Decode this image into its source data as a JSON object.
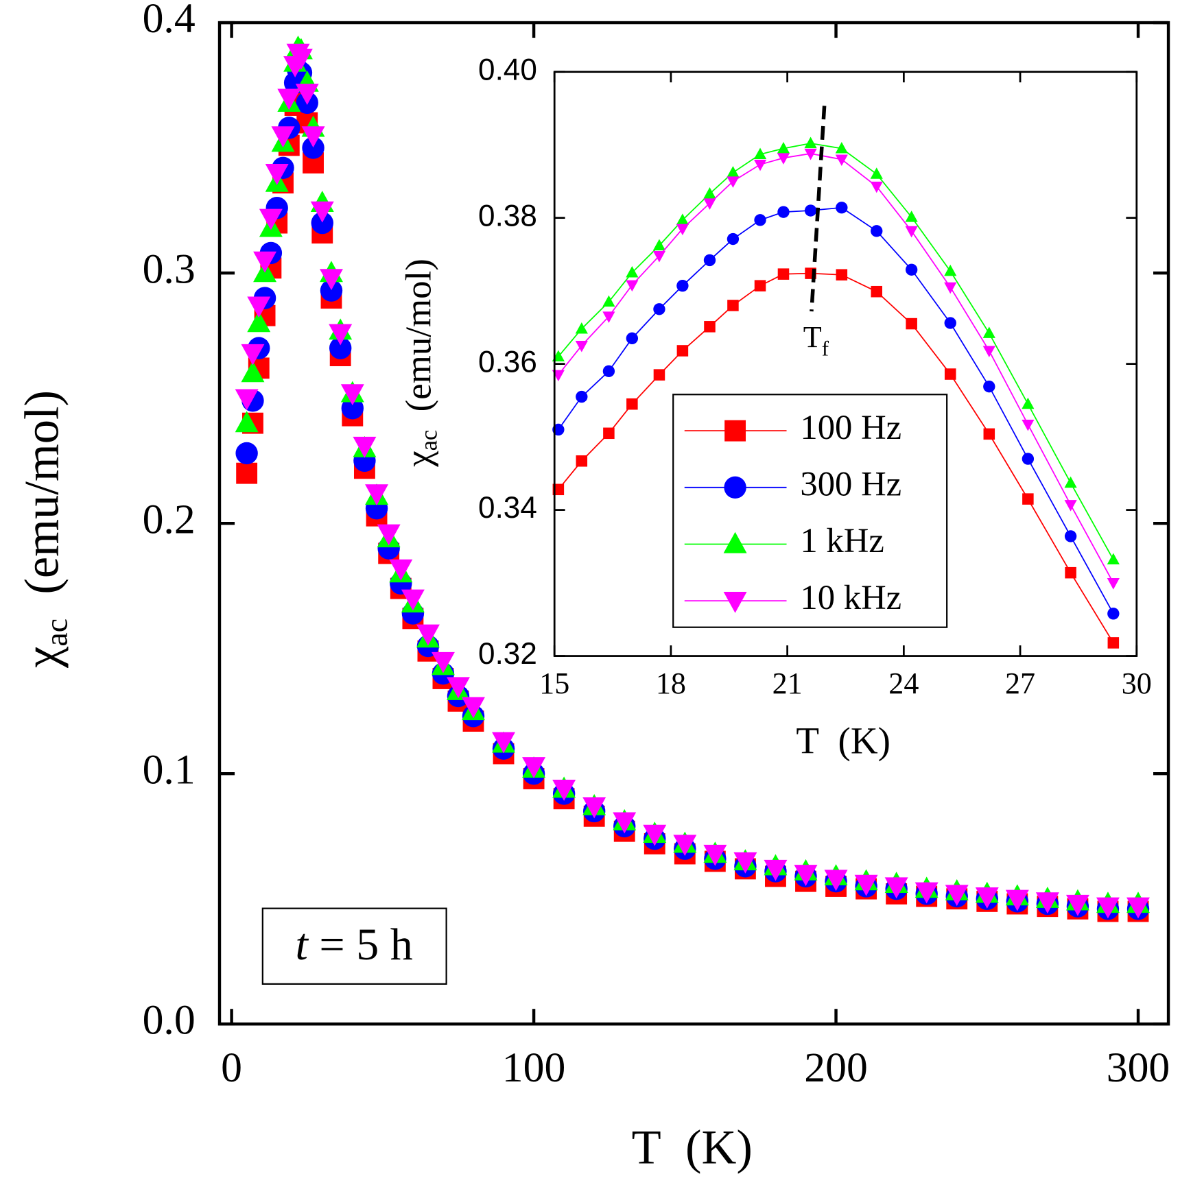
{
  "chart_data": [
    {
      "type": "scatter",
      "xlabel": {
        "symbol": "T",
        "unit": "(K)"
      },
      "ylabel": {
        "symbol": "χ",
        "sub": "ac",
        "unit": "(emu/mol)"
      },
      "annotation": {
        "var": "t",
        "text": "= 5 h"
      },
      "xlim": [
        -4,
        310
      ],
      "xticks": [
        0,
        100,
        200,
        300
      ],
      "ylim": [
        0,
        0.4
      ],
      "yticks": [
        {
          "value": 0,
          "label": "0.0"
        },
        0.1,
        0.2,
        0.3,
        0.4
      ],
      "x": [
        5,
        7,
        9,
        11,
        13,
        15,
        17,
        19,
        21,
        22,
        23,
        25,
        27,
        30,
        33,
        36,
        40,
        44,
        48,
        52,
        56,
        60,
        65,
        70,
        75,
        80,
        90,
        100,
        110,
        120,
        130,
        140,
        150,
        160,
        170,
        180,
        190,
        200,
        210,
        220,
        230,
        240,
        250,
        260,
        270,
        280,
        290,
        300
      ],
      "series": [
        {
          "color": "#ff0000",
          "marker": "square",
          "values": [
            0.22,
            0.24,
            0.262,
            0.283,
            0.302,
            0.32,
            0.336,
            0.351,
            0.367,
            0.372,
            0.371,
            0.36,
            0.344,
            0.316,
            0.29,
            0.267,
            0.243,
            0.222,
            0.203,
            0.188,
            0.174,
            0.162,
            0.149,
            0.138,
            0.129,
            0.121,
            0.108,
            0.098,
            0.09,
            0.083,
            0.077,
            0.072,
            0.068,
            0.065,
            0.062,
            0.059,
            0.057,
            0.055,
            0.054,
            0.052,
            0.051,
            0.05,
            0.049,
            0.048,
            0.047,
            0.046,
            0.045,
            0.045
          ]
        },
        {
          "color": "#0000ff",
          "marker": "circle",
          "values": [
            0.228,
            0.249,
            0.27,
            0.29,
            0.308,
            0.326,
            0.342,
            0.358,
            0.376,
            0.381,
            0.38,
            0.368,
            0.35,
            0.32,
            0.293,
            0.27,
            0.246,
            0.225,
            0.206,
            0.19,
            0.176,
            0.164,
            0.151,
            0.14,
            0.131,
            0.123,
            0.11,
            0.1,
            0.092,
            0.085,
            0.079,
            0.074,
            0.07,
            0.066,
            0.063,
            0.061,
            0.059,
            0.057,
            0.055,
            0.054,
            0.052,
            0.051,
            0.05,
            0.049,
            0.048,
            0.047,
            0.046,
            0.046
          ]
        },
        {
          "color": "#00ff00",
          "marker": "triangle-up",
          "values": [
            0.24,
            0.26,
            0.28,
            0.3,
            0.318,
            0.336,
            0.352,
            0.368,
            0.384,
            0.39,
            0.389,
            0.376,
            0.358,
            0.328,
            0.3,
            0.277,
            0.252,
            0.23,
            0.211,
            0.194,
            0.18,
            0.168,
            0.154,
            0.143,
            0.133,
            0.125,
            0.112,
            0.102,
            0.094,
            0.087,
            0.081,
            0.076,
            0.072,
            0.068,
            0.065,
            0.063,
            0.061,
            0.059,
            0.057,
            0.056,
            0.054,
            0.053,
            0.052,
            0.051,
            0.05,
            0.049,
            0.048,
            0.048
          ]
        },
        {
          "color": "#ff00ff",
          "marker": "triangle-down",
          "values": [
            0.25,
            0.268,
            0.287,
            0.305,
            0.322,
            0.34,
            0.355,
            0.37,
            0.383,
            0.388,
            0.386,
            0.372,
            0.355,
            0.325,
            0.298,
            0.276,
            0.252,
            0.231,
            0.212,
            0.196,
            0.182,
            0.17,
            0.156,
            0.145,
            0.135,
            0.127,
            0.113,
            0.103,
            0.094,
            0.087,
            0.081,
            0.076,
            0.072,
            0.068,
            0.065,
            0.062,
            0.06,
            0.058,
            0.056,
            0.055,
            0.053,
            0.052,
            0.051,
            0.05,
            0.049,
            0.048,
            0.047,
            0.047
          ]
        }
      ]
    },
    {
      "type": "line",
      "xlabel": {
        "symbol": "T",
        "unit": "(K)"
      },
      "ylabel": {
        "symbol": "χ",
        "sub": "ac",
        "unit": "(emu/mol)"
      },
      "marker_label": {
        "text": "T",
        "sub": "f"
      },
      "xlim": [
        15,
        30
      ],
      "xticks": [
        15,
        18,
        21,
        24,
        27,
        30
      ],
      "ylim": [
        0.32,
        0.4
      ],
      "yticks": [
        {
          "value": 0.32,
          "label": "0.32"
        },
        {
          "value": 0.34,
          "label": "0.34"
        },
        {
          "value": 0.36,
          "label": "0.36"
        },
        {
          "value": 0.38,
          "label": "0.38"
        },
        {
          "value": 0.4,
          "label": "0.40"
        }
      ],
      "x": [
        15.1,
        15.7,
        16.4,
        17.0,
        17.7,
        18.3,
        19.0,
        19.6,
        20.3,
        20.9,
        21.6,
        22.4,
        23.3,
        24.2,
        25.2,
        26.2,
        27.2,
        28.3,
        29.4
      ],
      "series": [
        {
          "name": "100 Hz",
          "color": "#ff0000",
          "marker": "square",
          "values": [
            0.3428,
            0.3467,
            0.3505,
            0.3545,
            0.3585,
            0.3618,
            0.3651,
            0.368,
            0.3707,
            0.3723,
            0.3724,
            0.3722,
            0.3699,
            0.3655,
            0.3586,
            0.3504,
            0.3415,
            0.3314,
            0.3218
          ]
        },
        {
          "name": "300 Hz",
          "color": "#0000ff",
          "marker": "circle",
          "values": [
            0.351,
            0.3555,
            0.359,
            0.3635,
            0.3675,
            0.3707,
            0.3742,
            0.3771,
            0.3797,
            0.3808,
            0.381,
            0.3814,
            0.3782,
            0.3729,
            0.3656,
            0.3569,
            0.347,
            0.3364,
            0.3258
          ]
        },
        {
          "name": "1 kHz",
          "color": "#00ff00",
          "marker": "triangle-up",
          "values": [
            0.361,
            0.3648,
            0.3685,
            0.3725,
            0.3762,
            0.3797,
            0.3833,
            0.3862,
            0.3887,
            0.3895,
            0.3902,
            0.3895,
            0.386,
            0.3801,
            0.3727,
            0.3642,
            0.3545,
            0.3437,
            0.3332
          ]
        },
        {
          "name": "10 kHz",
          "color": "#ff00ff",
          "marker": "triangle-down",
          "values": [
            0.3585,
            0.3625,
            0.3665,
            0.3708,
            0.3748,
            0.3785,
            0.382,
            0.385,
            0.3873,
            0.3882,
            0.3888,
            0.388,
            0.3843,
            0.3782,
            0.3705,
            0.3618,
            0.3517,
            0.3407,
            0.33
          ]
        }
      ]
    }
  ]
}
